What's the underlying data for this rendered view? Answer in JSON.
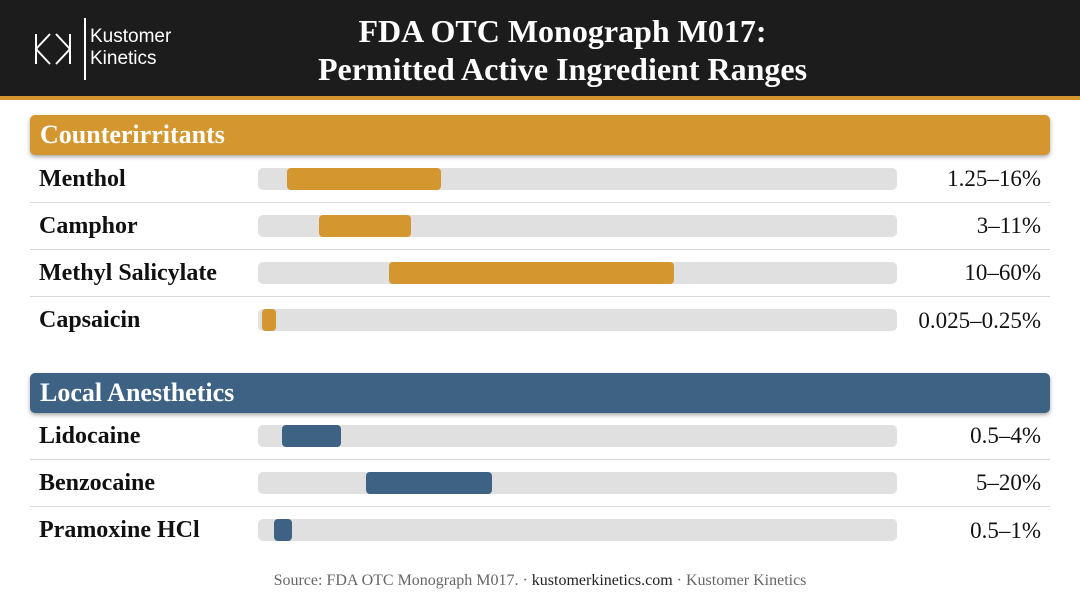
{
  "brand": {
    "name_line1": "Kustomer",
    "name_line2": "Kinetics"
  },
  "title": {
    "line1": "FDA OTC Monograph M017:",
    "line2": "Permitted Active Ingredient Ranges"
  },
  "colors": {
    "counterirritants": "#d4962e",
    "local_anesthetics": "#3e6283",
    "header_bg": "#1c1c1c",
    "track": "#e0e0e0"
  },
  "chart_data": {
    "type": "range-bar",
    "scale": "nonlinear (ranges positioned proportionally on a shared concentration track)",
    "groups": [
      {
        "name": "Counterirritants",
        "color": "#d4962e",
        "items": [
          {
            "name": "Menthol",
            "min": 1.25,
            "max": 16,
            "label": "1.25–16%"
          },
          {
            "name": "Camphor",
            "min": 3,
            "max": 11,
            "label": "3–11%"
          },
          {
            "name": "Methyl Salicylate",
            "min": 10,
            "max": 60,
            "label": "10–60%"
          },
          {
            "name": "Capsaicin",
            "min": 0.025,
            "max": 0.25,
            "label": "0.025–0.25%"
          }
        ]
      },
      {
        "name": "Local Anesthetics",
        "color": "#3e6283",
        "items": [
          {
            "name": "Lidocaine",
            "min": 0.5,
            "max": 4,
            "label": "0.5–4%"
          },
          {
            "name": "Benzocaine",
            "min": 5,
            "max": 20,
            "label": "5–20%"
          },
          {
            "name": "Pramoxine HCl",
            "min": 0.5,
            "max": 1,
            "label": "0.5–1%"
          }
        ]
      }
    ]
  },
  "footer": {
    "source": "Source: FDA OTC Monograph M017. · ",
    "site": "kustomerkinetics.com",
    "brand": " · Kustomer Kinetics"
  }
}
